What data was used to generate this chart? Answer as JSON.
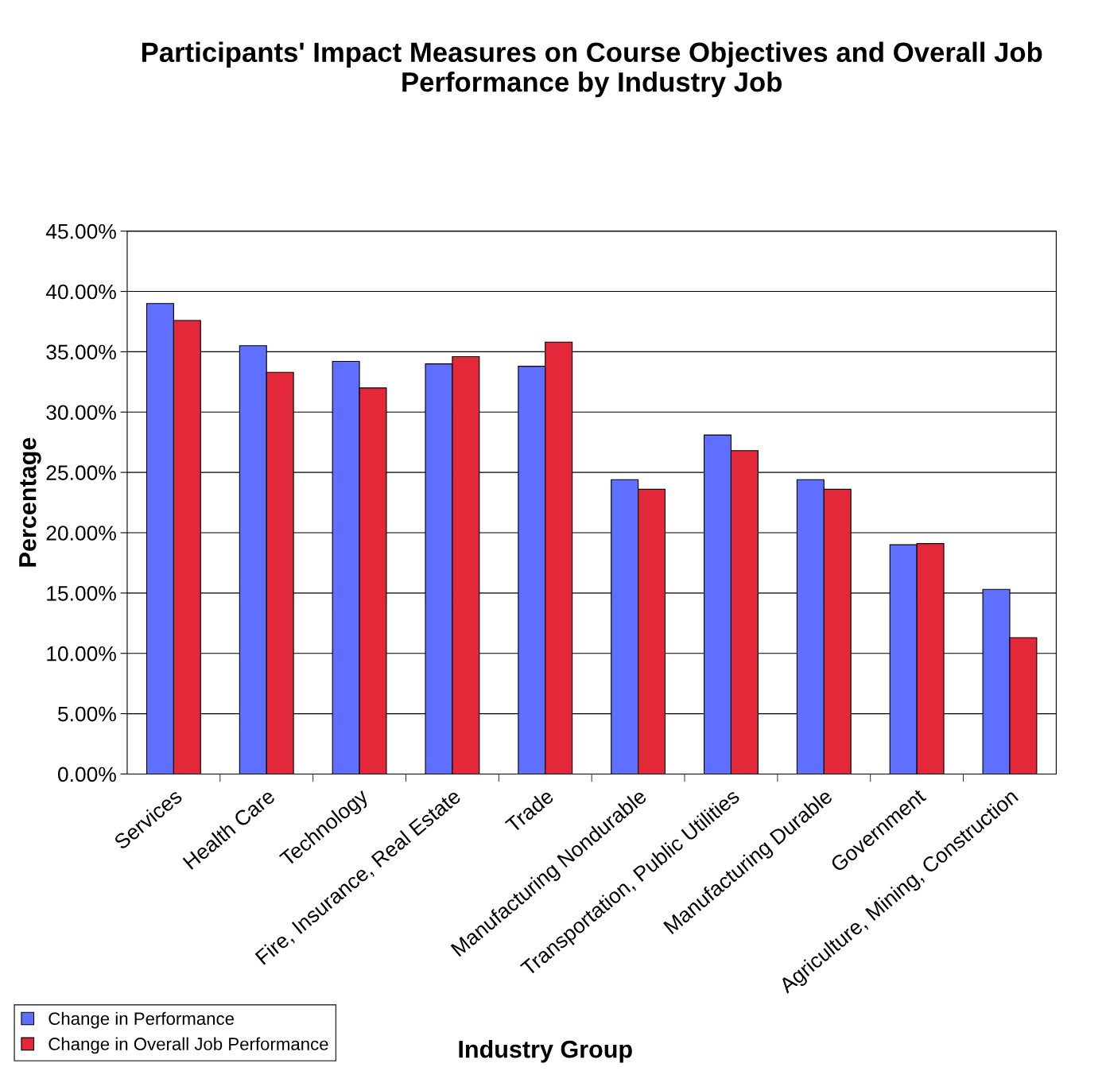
{
  "chart_data": {
    "type": "bar",
    "title": "Participants' Impact Measures on Course Objectives and Overall Job Performance by Industry Job",
    "xlabel": "Industry Group",
    "ylabel": "Percentage",
    "categories": [
      "Services",
      "Health Care",
      "Technology",
      "Fire, Insurance, Real Estate",
      "Trade",
      "Manufacturing Nondurable",
      "Transportation, Public Utilities",
      "Manufacturing Durable",
      "Government",
      "Agriculture, Mining, Construction"
    ],
    "series": [
      {
        "name": "Change in Performance",
        "color": "#5f6fff",
        "values": [
          39.0,
          35.5,
          34.2,
          34.0,
          33.8,
          24.4,
          28.1,
          24.4,
          19.0,
          15.3
        ]
      },
      {
        "name": "Change in Overall Job Performance",
        "color": "#e3283a",
        "values": [
          37.6,
          33.3,
          32.0,
          34.6,
          35.8,
          23.6,
          26.8,
          23.6,
          19.1,
          11.3
        ]
      }
    ],
    "ylim": [
      0,
      45
    ],
    "yticks": [
      {
        "value": 0,
        "label": "0.00%"
      },
      {
        "value": 5,
        "label": "5.00%"
      },
      {
        "value": 10,
        "label": "10.00%"
      },
      {
        "value": 15,
        "label": "15.00%"
      },
      {
        "value": 20,
        "label": "20.00%"
      },
      {
        "value": 25,
        "label": "25.00%"
      },
      {
        "value": 30,
        "label": "30.00%"
      },
      {
        "value": 35,
        "label": "35.00%"
      },
      {
        "value": 40,
        "label": "40.00%"
      },
      {
        "value": 45,
        "label": "45.00%"
      }
    ],
    "grid": "y",
    "legend": "bottom left"
  }
}
